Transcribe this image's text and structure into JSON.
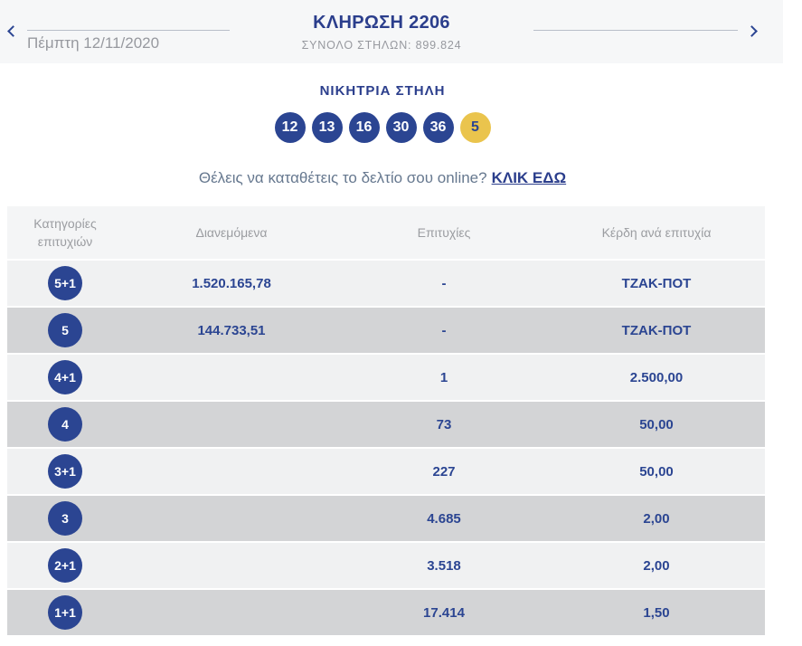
{
  "header": {
    "date_label": "Πέμπτη 12/11/2020",
    "title": "ΚΛΗΡΩΣΗ 2206",
    "total_columns_label": "ΣΥΝΟΛΟ ΣΤΗΛΩΝ: 899.824"
  },
  "winning": {
    "title": "ΝΙΚΗΤΡΙΑ ΣΤΗΛΗ",
    "numbers": [
      "12",
      "13",
      "16",
      "30",
      "36"
    ],
    "joker": "5"
  },
  "cta": {
    "question": "Θέλεις να καταθέτεις το δελτίο σου online?",
    "link_label": "ΚΛΙΚ ΕΔΩ"
  },
  "table": {
    "headers": [
      "Κατηγορίες επιτυχιών",
      "Διανεμόμενα",
      "Επιτυχίες",
      "Κέρδη ανά επιτυχία"
    ],
    "rows": [
      {
        "category": "5+1",
        "distributed": "1.520.165,78",
        "winners": "-",
        "prize": "ΤΖΑΚ-ΠΟΤ"
      },
      {
        "category": "5",
        "distributed": "144.733,51",
        "winners": "-",
        "prize": "ΤΖΑΚ-ΠΟΤ"
      },
      {
        "category": "4+1",
        "distributed": "",
        "winners": "1",
        "prize": "2.500,00"
      },
      {
        "category": "4",
        "distributed": "",
        "winners": "73",
        "prize": "50,00"
      },
      {
        "category": "3+1",
        "distributed": "",
        "winners": "227",
        "prize": "50,00"
      },
      {
        "category": "3",
        "distributed": "",
        "winners": "4.685",
        "prize": "2,00"
      },
      {
        "category": "2+1",
        "distributed": "",
        "winners": "3.518",
        "prize": "2,00"
      },
      {
        "category": "1+1",
        "distributed": "",
        "winners": "17.414",
        "prize": "1,50"
      }
    ]
  },
  "colors": {
    "navy": "#2b4592",
    "title_navy": "#2b3e8c",
    "joker_yellow": "#eac44d",
    "row_light": "#f0f1f2",
    "row_dark": "#d3d4d6",
    "header_bg": "#f4f5f6",
    "bar_bg": "#f6f7f8",
    "muted_gray": "#97999f"
  }
}
